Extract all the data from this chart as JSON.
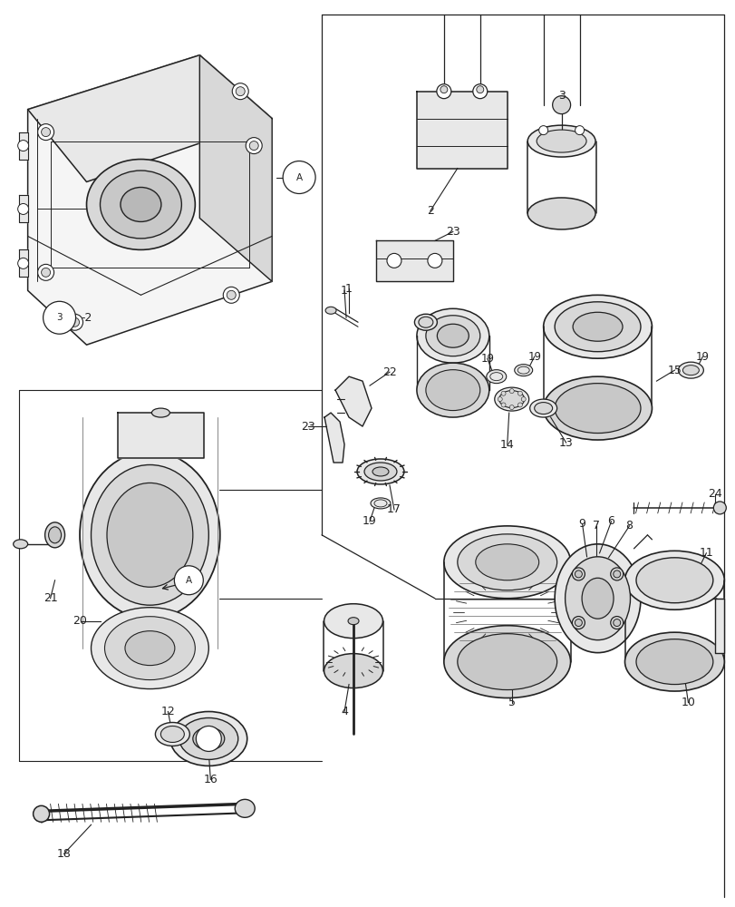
{
  "background_color": "#ffffff",
  "line_color": "#222222",
  "fig_width": 8.12,
  "fig_height": 10.0,
  "dpi": 100,
  "fill_light": "#f5f5f5",
  "fill_medium": "#e8e8e8",
  "fill_dark": "#d8d8d8",
  "fill_darker": "#c8c8c8"
}
